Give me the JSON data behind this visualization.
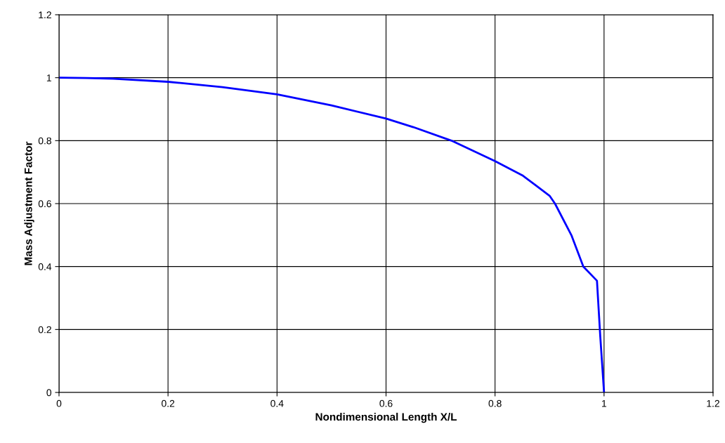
{
  "chart_data": {
    "type": "line",
    "xlabel": "Nondimensional Length X/L",
    "ylabel": "Mass Adjustment Factor",
    "series": [
      {
        "color": "#0000ff",
        "x": [
          0,
          0.05,
          0.1,
          0.2,
          0.3,
          0.4,
          0.5,
          0.6,
          0.65,
          0.72,
          0.8,
          0.85,
          0.9,
          0.91,
          0.94,
          0.962,
          0.987,
          0.993,
          1.0
        ],
        "values": [
          1.0,
          0.999,
          0.997,
          0.987,
          0.97,
          0.947,
          0.912,
          0.87,
          0.843,
          0.8,
          0.735,
          0.69,
          0.625,
          0.6,
          0.5,
          0.4,
          0.355,
          0.18,
          0.0
        ]
      }
    ],
    "xlim": [
      0,
      1.2
    ],
    "xticks": [
      0,
      0.2,
      0.4,
      0.6,
      0.8,
      1,
      1.2
    ],
    "ylim": [
      0,
      1.2
    ],
    "yticks": [
      0,
      0.2,
      0.4,
      0.6,
      0.8,
      1,
      1.2
    ],
    "grid": true,
    "marker": "none",
    "line_style": "solid"
  }
}
